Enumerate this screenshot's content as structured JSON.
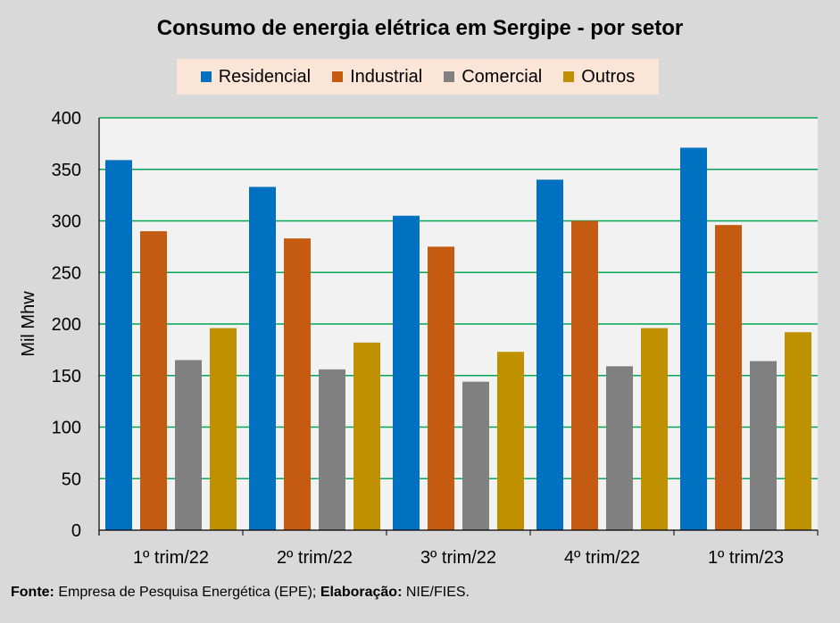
{
  "chart_data": {
    "type": "bar",
    "title": "Consumo de energia elétrica em Sergipe - por setor",
    "xlabel": "",
    "ylabel": "Mil Mhw",
    "ylim": [
      0,
      400
    ],
    "yticks": [
      0,
      50,
      100,
      150,
      200,
      250,
      300,
      350,
      400
    ],
    "categories": [
      "1º trim/22",
      "2º trim/22",
      "3º trim/22",
      "4º trim/22",
      "1º trim/23"
    ],
    "series": [
      {
        "name": "Residencial",
        "color": "#0070c0",
        "values": [
          359,
          333,
          305,
          340,
          371
        ]
      },
      {
        "name": "Industrial",
        "color": "#c55a11",
        "values": [
          290,
          283,
          275,
          300,
          296
        ]
      },
      {
        "name": "Comercial",
        "color": "#808080",
        "values": [
          165,
          156,
          144,
          159,
          164
        ]
      },
      {
        "name": "Outros",
        "color": "#bf9000",
        "values": [
          196,
          182,
          173,
          196,
          192
        ]
      }
    ],
    "legend_position": "top",
    "grid": true
  },
  "footer": {
    "source_label": "Fonte:",
    "source_text": "Empresa de Pesquisa Energética (EPE);",
    "elab_label": "Elaboração:",
    "elab_text": "NIE/FIES."
  },
  "colors": {
    "background": "#d9d9d9",
    "plot_background": "#f2f2f2",
    "gridline": "#00a650",
    "legend_background": "#fbe5d6"
  }
}
